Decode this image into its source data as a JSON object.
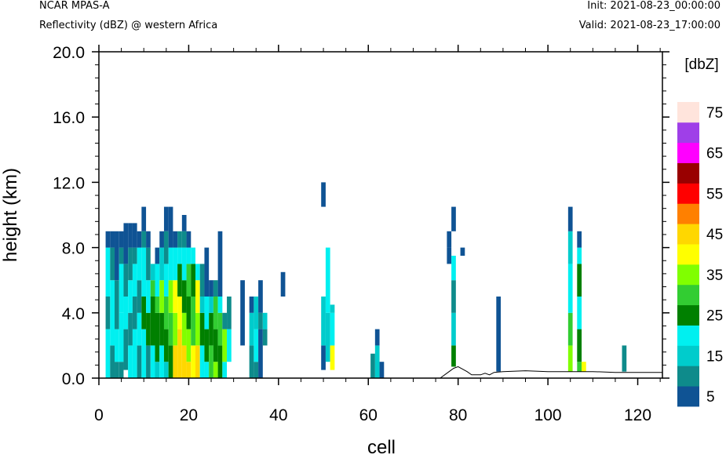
{
  "header": {
    "model": "NCAR MPAS-A",
    "field": "Reflectivity (dBZ) @ western Africa",
    "init": "Init: 2021-08-23_00:00:00",
    "valid": "Valid: 2021-08-23_17:00:00"
  },
  "chart_data": {
    "type": "heatmap",
    "xlabel": "cell",
    "ylabel": "height (km)",
    "xlim": [
      0,
      125.5
    ],
    "ylim": [
      0,
      20
    ],
    "x_ticks": [
      "0",
      "20",
      "40",
      "60",
      "80",
      "100",
      "120"
    ],
    "y_ticks": [
      "0.0",
      "4.0",
      "8.0",
      "12.0",
      "16.0",
      "20.0"
    ],
    "colorbar": {
      "title": "[dbZ]",
      "levels": [
        5,
        10,
        15,
        20,
        25,
        30,
        35,
        40,
        45,
        50,
        55,
        60,
        65,
        70,
        75
      ],
      "labels": [
        "5",
        "15",
        "25",
        "35",
        "45",
        "55",
        "65",
        "75"
      ],
      "colors": [
        "#0f5394",
        "#0e8b8b",
        "#00cccc",
        "#00f0f0",
        "#008000",
        "#32cd32",
        "#80ff00",
        "#ffff00",
        "#ffd700",
        "#ff8000",
        "#ff0000",
        "#990000",
        "#ff00ff",
        "#9f3fe8",
        "#ffe4dc"
      ]
    },
    "terrain_km": [
      [
        0,
        0
      ],
      [
        76,
        0
      ],
      [
        78,
        0.4
      ],
      [
        79,
        0.6
      ],
      [
        80,
        0.7
      ],
      [
        82,
        0.4
      ],
      [
        83,
        0.2
      ],
      [
        85,
        0.2
      ],
      [
        86,
        0.3
      ],
      [
        87,
        0.2
      ],
      [
        88,
        0.35
      ],
      [
        90,
        0.4
      ],
      [
        95,
        0.45
      ],
      [
        100,
        0.4
      ],
      [
        105,
        0.4
      ],
      [
        110,
        0.4
      ],
      [
        115,
        0.35
      ],
      [
        120,
        0.35
      ],
      [
        125.5,
        0.35
      ]
    ],
    "columns": [
      {
        "x": 2,
        "segments": [
          [
            0,
            3,
            20
          ],
          [
            3,
            5,
            10
          ],
          [
            5,
            8,
            20
          ],
          [
            8,
            9,
            5
          ]
        ]
      },
      {
        "x": 3,
        "segments": [
          [
            0,
            2,
            10
          ],
          [
            2,
            6,
            20
          ],
          [
            6,
            8,
            10
          ],
          [
            8,
            9,
            5
          ]
        ]
      },
      {
        "x": 4,
        "segments": [
          [
            0,
            1,
            10
          ],
          [
            1,
            3,
            20
          ],
          [
            3,
            6,
            10
          ],
          [
            6,
            9,
            5
          ]
        ]
      },
      {
        "x": 5,
        "segments": [
          [
            0,
            1,
            10
          ],
          [
            1,
            4,
            20
          ],
          [
            4,
            7,
            20
          ],
          [
            7,
            8,
            10
          ],
          [
            8,
            9,
            5
          ]
        ]
      },
      {
        "x": 6,
        "segments": [
          [
            0.5,
            3,
            10
          ],
          [
            3,
            5,
            20
          ],
          [
            5,
            7,
            10
          ],
          [
            7,
            9.5,
            5
          ]
        ]
      },
      {
        "x": 7,
        "segments": [
          [
            0,
            2,
            20
          ],
          [
            2,
            4,
            10
          ],
          [
            4,
            6,
            20
          ],
          [
            6,
            8,
            10
          ],
          [
            8,
            9.5,
            5
          ]
        ]
      },
      {
        "x": 8,
        "segments": [
          [
            0,
            3,
            20
          ],
          [
            3,
            5,
            10
          ],
          [
            5,
            7,
            20
          ],
          [
            7,
            8,
            10
          ],
          [
            8,
            9.5,
            5
          ]
        ]
      },
      {
        "x": 9,
        "segments": [
          [
            0,
            2,
            10
          ],
          [
            2,
            4,
            20
          ],
          [
            4,
            6,
            10
          ],
          [
            6,
            8,
            20
          ],
          [
            8,
            9,
            5
          ]
        ]
      },
      {
        "x": 10,
        "segments": [
          [
            0,
            3,
            20
          ],
          [
            3,
            5,
            25
          ],
          [
            5,
            8,
            20
          ],
          [
            8,
            9,
            10
          ],
          [
            9,
            10.5,
            5
          ]
        ]
      },
      {
        "x": 11,
        "segments": [
          [
            0,
            2,
            10
          ],
          [
            2,
            4,
            25
          ],
          [
            4,
            6,
            20
          ],
          [
            6,
            8,
            10
          ],
          [
            8,
            9,
            5
          ]
        ]
      },
      {
        "x": 12,
        "segments": [
          [
            0,
            2,
            20
          ],
          [
            2,
            5,
            25
          ],
          [
            5,
            6,
            30
          ],
          [
            6,
            7,
            15
          ]
        ]
      },
      {
        "x": 13,
        "segments": [
          [
            0,
            1,
            15
          ],
          [
            1,
            4,
            25
          ],
          [
            4,
            5,
            30
          ],
          [
            5,
            7,
            20
          ],
          [
            7,
            8,
            5
          ]
        ]
      },
      {
        "x": 14,
        "segments": [
          [
            0,
            2,
            20
          ],
          [
            2,
            4,
            25
          ],
          [
            4,
            6,
            35
          ],
          [
            6,
            8,
            15
          ],
          [
            8,
            9,
            5
          ]
        ]
      },
      {
        "x": 15,
        "segments": [
          [
            0,
            1,
            15
          ],
          [
            1,
            3,
            25
          ],
          [
            3,
            5,
            30
          ],
          [
            5,
            7,
            20
          ],
          [
            7,
            9,
            10
          ],
          [
            9,
            10.5,
            5
          ]
        ]
      },
      {
        "x": 16,
        "segments": [
          [
            0,
            2,
            25
          ],
          [
            2,
            4,
            30
          ],
          [
            4,
            6,
            35
          ],
          [
            6,
            8,
            20
          ],
          [
            8,
            10.5,
            5
          ]
        ]
      },
      {
        "x": 17,
        "segments": [
          [
            0,
            2,
            45
          ],
          [
            2,
            4,
            35
          ],
          [
            4,
            6,
            40
          ],
          [
            6,
            8,
            20
          ],
          [
            8,
            9,
            5
          ]
        ]
      },
      {
        "x": 18,
        "segments": [
          [
            0,
            3,
            45
          ],
          [
            3,
            5,
            40
          ],
          [
            5,
            7,
            25
          ],
          [
            7,
            8,
            20
          ],
          [
            8,
            9,
            10
          ]
        ]
      },
      {
        "x": 19,
        "segments": [
          [
            0,
            2,
            45
          ],
          [
            2,
            4,
            35
          ],
          [
            4,
            6,
            25
          ],
          [
            6,
            8,
            20
          ],
          [
            8,
            9,
            10
          ],
          [
            9,
            10,
            5
          ]
        ]
      },
      {
        "x": 20,
        "segments": [
          [
            0,
            1,
            45
          ],
          [
            1,
            3,
            35
          ],
          [
            3,
            5,
            25
          ],
          [
            5,
            7,
            30
          ],
          [
            7,
            8,
            20
          ],
          [
            8,
            9,
            5
          ]
        ]
      },
      {
        "x": 21,
        "segments": [
          [
            0,
            2,
            40
          ],
          [
            2,
            5,
            30
          ],
          [
            5,
            7,
            25
          ],
          [
            7,
            8,
            20
          ]
        ]
      },
      {
        "x": 22,
        "segments": [
          [
            0,
            2,
            45
          ],
          [
            2,
            4,
            35
          ],
          [
            4,
            6,
            40
          ],
          [
            6,
            7,
            20
          ]
        ]
      },
      {
        "x": 23,
        "segments": [
          [
            0,
            2,
            20
          ],
          [
            2,
            4,
            25
          ],
          [
            4,
            5,
            15
          ],
          [
            5,
            7,
            10
          ]
        ]
      },
      {
        "x": 24,
        "segments": [
          [
            0,
            1,
            20
          ],
          [
            1,
            3,
            25
          ],
          [
            3,
            5,
            20
          ],
          [
            5,
            8,
            5
          ]
        ]
      },
      {
        "x": 25,
        "segments": [
          [
            0,
            2,
            30
          ],
          [
            2,
            4,
            25
          ],
          [
            4,
            5,
            15
          ],
          [
            5,
            6,
            5
          ]
        ]
      },
      {
        "x": 26,
        "segments": [
          [
            0,
            1,
            35
          ],
          [
            1,
            3,
            25
          ],
          [
            3,
            5,
            30
          ],
          [
            5,
            6,
            10
          ]
        ]
      },
      {
        "x": 27,
        "segments": [
          [
            0,
            2,
            25
          ],
          [
            2,
            4,
            30
          ],
          [
            4,
            5,
            20
          ],
          [
            5,
            9,
            5
          ]
        ]
      },
      {
        "x": 28,
        "segments": [
          [
            0,
            1,
            20
          ],
          [
            1,
            3,
            35
          ],
          [
            3,
            4,
            10
          ]
        ]
      },
      {
        "x": 29,
        "segments": [
          [
            1,
            3,
            20
          ],
          [
            3,
            5,
            10
          ]
        ]
      },
      {
        "x": 32,
        "segments": [
          [
            2,
            6,
            5
          ]
        ]
      },
      {
        "x": 34,
        "segments": [
          [
            0,
            2,
            10
          ],
          [
            2,
            4,
            15
          ],
          [
            4,
            5,
            5
          ]
        ]
      },
      {
        "x": 35,
        "segments": [
          [
            0,
            1,
            10
          ],
          [
            1,
            3,
            20
          ],
          [
            3,
            5,
            15
          ]
        ]
      },
      {
        "x": 36,
        "segments": [
          [
            0,
            3,
            5
          ],
          [
            3,
            4,
            10
          ],
          [
            4,
            6,
            5
          ]
        ]
      },
      {
        "x": 37,
        "segments": [
          [
            2,
            3,
            10
          ],
          [
            3,
            4,
            15
          ]
        ]
      },
      {
        "x": 41,
        "segments": [
          [
            5,
            6.5,
            5
          ]
        ]
      },
      {
        "x": 50,
        "segments": [
          [
            0.5,
            2,
            5
          ],
          [
            2,
            5,
            15
          ],
          [
            10.5,
            12,
            5
          ]
        ]
      },
      {
        "x": 51,
        "segments": [
          [
            1,
            4,
            15
          ],
          [
            4,
            8,
            20
          ]
        ]
      },
      {
        "x": 52,
        "segments": [
          [
            0.5,
            2,
            40
          ],
          [
            2,
            4,
            20
          ],
          [
            4,
            4.5,
            15
          ]
        ]
      },
      {
        "x": 61,
        "segments": [
          [
            0,
            1.5,
            10
          ]
        ]
      },
      {
        "x": 62,
        "segments": [
          [
            0,
            2,
            15
          ],
          [
            2,
            3,
            5
          ]
        ]
      },
      {
        "x": 63,
        "segments": [
          [
            0,
            1,
            5
          ]
        ]
      },
      {
        "x": 78,
        "segments": [
          [
            8,
            9,
            5
          ],
          [
            7,
            8,
            5
          ]
        ]
      },
      {
        "x": 79,
        "segments": [
          [
            0.7,
            2,
            25
          ],
          [
            2,
            4,
            15
          ],
          [
            4,
            6,
            10
          ],
          [
            6,
            7.5,
            20
          ],
          [
            9,
            10.5,
            5
          ]
        ]
      },
      {
        "x": 81,
        "segments": [
          [
            7.5,
            8,
            5
          ]
        ]
      },
      {
        "x": 89,
        "segments": [
          [
            0.4,
            5,
            5
          ]
        ]
      },
      {
        "x": 105,
        "segments": [
          [
            0.4,
            2,
            35
          ],
          [
            2,
            4,
            30
          ],
          [
            4,
            7,
            20
          ],
          [
            7,
            9,
            15
          ],
          [
            9,
            10.5,
            5
          ]
        ]
      },
      {
        "x": 107,
        "segments": [
          [
            0.4,
            1,
            30
          ],
          [
            1,
            3,
            25
          ],
          [
            3,
            5,
            20
          ],
          [
            5,
            7,
            25
          ],
          [
            7,
            8,
            20
          ],
          [
            8,
            9,
            5
          ]
        ]
      },
      {
        "x": 108,
        "segments": [
          [
            0.4,
            1,
            40
          ]
        ]
      },
      {
        "x": 117,
        "segments": [
          [
            0.4,
            2,
            10
          ]
        ]
      }
    ]
  }
}
